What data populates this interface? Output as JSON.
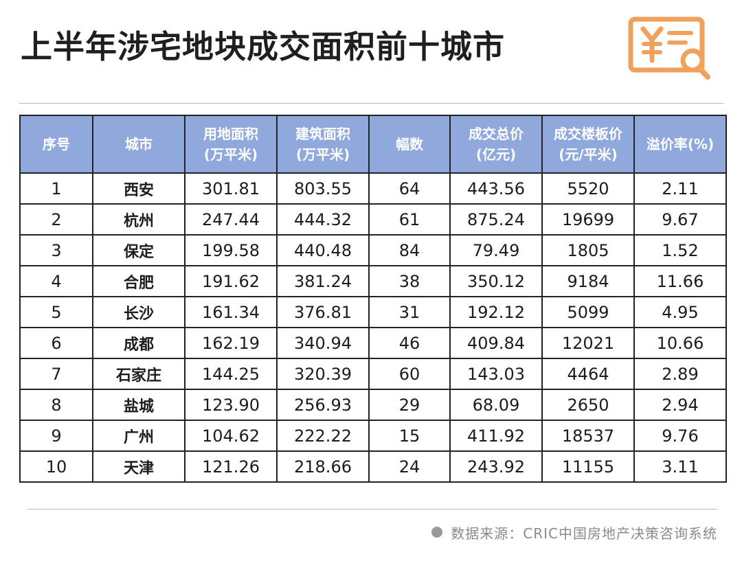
{
  "title": "上半年涉宅地块成交面积前十城市",
  "logo_icon": "yuan-document-search-icon",
  "accent_color": "#f0a15c",
  "header_color": "#8fa9dc",
  "table": {
    "headers": [
      {
        "line1": "序号",
        "line2": ""
      },
      {
        "line1": "城市",
        "line2": ""
      },
      {
        "line1": "用地面积",
        "line2": "(万平米)"
      },
      {
        "line1": "建筑面积",
        "line2": "(万平米)"
      },
      {
        "line1": "幅数",
        "line2": ""
      },
      {
        "line1": "成交总价",
        "line2": "(亿元)"
      },
      {
        "line1": "成交楼板价",
        "line2": "(元/平米)"
      },
      {
        "line1": "溢价率(%)",
        "line2": ""
      }
    ],
    "rows": [
      [
        "1",
        "西安",
        "301.81",
        "803.55",
        "64",
        "443.56",
        "5520",
        "2.11"
      ],
      [
        "2",
        "杭州",
        "247.44",
        "444.32",
        "61",
        "875.24",
        "19699",
        "9.67"
      ],
      [
        "3",
        "保定",
        "199.58",
        "440.48",
        "84",
        "79.49",
        "1805",
        "1.52"
      ],
      [
        "4",
        "合肥",
        "191.62",
        "381.24",
        "38",
        "350.12",
        "9184",
        "11.66"
      ],
      [
        "5",
        "长沙",
        "161.34",
        "376.81",
        "31",
        "192.12",
        "5099",
        "4.95"
      ],
      [
        "6",
        "成都",
        "162.19",
        "340.94",
        "46",
        "409.84",
        "12021",
        "10.66"
      ],
      [
        "7",
        "石家庄",
        "144.25",
        "320.39",
        "60",
        "143.03",
        "4464",
        "2.89"
      ],
      [
        "8",
        "盐城",
        "123.90",
        "256.93",
        "29",
        "68.09",
        "2650",
        "2.94"
      ],
      [
        "9",
        "广州",
        "104.62",
        "222.22",
        "15",
        "411.92",
        "18537",
        "9.76"
      ],
      [
        "10",
        "天津",
        "121.26",
        "218.66",
        "24",
        "243.92",
        "11155",
        "3.11"
      ]
    ]
  },
  "source": "数据来源：CRIC中国房地产决策咨询系统"
}
